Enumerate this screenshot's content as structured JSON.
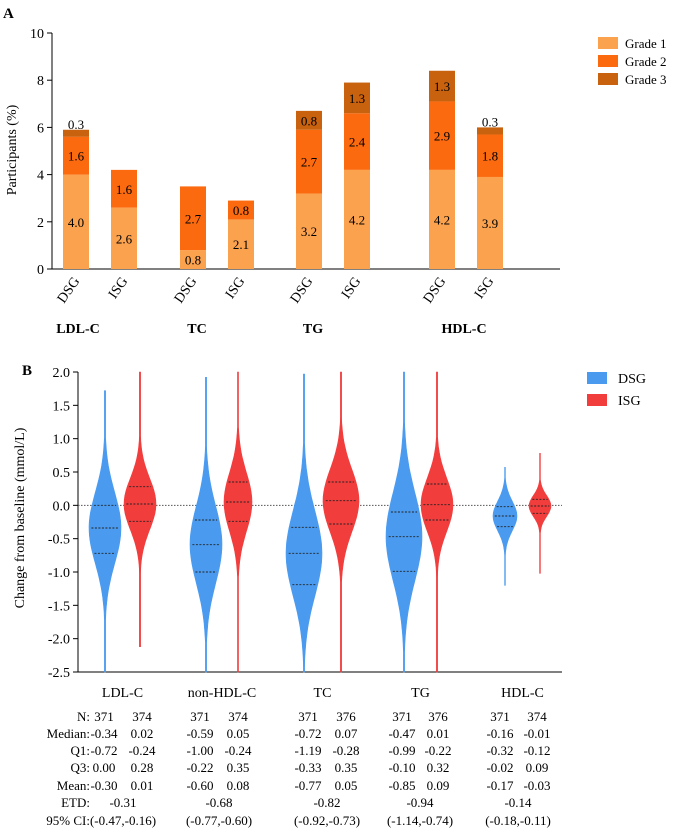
{
  "panel_a": {
    "label": "A",
    "chart_data": {
      "type": "bar",
      "stacked": true,
      "ylabel": "Participants (%)",
      "ylim": [
        0,
        10
      ],
      "yticks": [
        "0",
        "2",
        "4",
        "6",
        "8",
        "10"
      ],
      "categories": [
        "DSG",
        "ISG",
        "DSG",
        "ISG",
        "DSG",
        "ISG",
        "DSG",
        "ISG"
      ],
      "groups": [
        "LDL-C",
        "TC",
        "TG",
        "HDL-C"
      ],
      "legend_position": "top-right",
      "colors": {
        "Grade 1": "#fba24f",
        "Grade 2": "#fb6a0f",
        "Grade 3": "#c9620f"
      },
      "series": [
        {
          "name": "Grade 1",
          "values": [
            4.0,
            2.6,
            0.8,
            2.1,
            3.2,
            4.2,
            4.2,
            3.9
          ],
          "labels": [
            "4.0",
            "2.6",
            "0.8",
            "2.1",
            "3.2",
            "4.2",
            "4.2",
            "3.9"
          ]
        },
        {
          "name": "Grade 2",
          "values": [
            1.6,
            1.6,
            2.7,
            0.8,
            2.7,
            2.4,
            2.9,
            1.8
          ],
          "labels": [
            "1.6",
            "1.6",
            "2.7",
            "0.8",
            "2.7",
            "2.4",
            "2.9",
            "1.8"
          ]
        },
        {
          "name": "Grade 3",
          "values": [
            0.3,
            0.0,
            0.0,
            0.0,
            0.8,
            1.3,
            1.3,
            0.3
          ],
          "labels": [
            "0.3",
            "",
            "",
            "",
            "0.8",
            "1.3",
            "1.3",
            "0.3"
          ]
        }
      ]
    }
  },
  "panel_b": {
    "label": "B",
    "chart_data": {
      "type": "violin",
      "ylabel": "Change from baseline (mmol/L)",
      "ylim": [
        -2.5,
        2.0
      ],
      "yticks": [
        "2.0",
        "1.5",
        "1.0",
        "0.5",
        "0.0",
        "-0.5",
        "-1.0",
        "-1.5",
        "-2.0",
        "-2.5"
      ],
      "reference_line": 0.0,
      "groups": [
        "LDL-C",
        "non-HDL-C",
        "TC",
        "TG",
        "HDL-C"
      ],
      "legend_position": "top-right",
      "series": [
        {
          "name": "DSG",
          "color": "#4a9bf0",
          "median": [
            -0.34,
            -0.59,
            -0.72,
            -0.47,
            -0.16
          ],
          "q1": [
            -0.72,
            -1.0,
            -1.19,
            -0.99,
            -0.32
          ],
          "q3": [
            0.0,
            -0.22,
            -0.33,
            -0.1,
            -0.02
          ],
          "min": [
            -2.5,
            -2.5,
            -2.5,
            -2.5,
            -1.2
          ],
          "max": [
            1.72,
            1.92,
            1.97,
            2.0,
            0.57
          ]
        },
        {
          "name": "ISG",
          "color": "#f23d3d",
          "median": [
            0.02,
            0.05,
            0.07,
            0.01,
            -0.01
          ],
          "q1": [
            -0.24,
            -0.24,
            -0.28,
            -0.22,
            -0.12
          ],
          "q3": [
            0.28,
            0.35,
            0.35,
            0.32,
            0.09
          ],
          "min": [
            -2.12,
            -2.5,
            -2.5,
            -2.5,
            -1.02
          ],
          "max": [
            2.0,
            2.0,
            2.0,
            2.0,
            0.78
          ]
        }
      ]
    },
    "stats_table": {
      "rows": [
        {
          "label": "N:",
          "values": [
            "371",
            "374",
            "371",
            "374",
            "371",
            "376",
            "371",
            "376",
            "371",
            "374"
          ]
        },
        {
          "label": "Median:",
          "values": [
            "-0.34",
            "0.02",
            "-0.59",
            "0.05",
            "-0.72",
            "0.07",
            "-0.47",
            "0.01",
            "-0.16",
            "-0.01"
          ]
        },
        {
          "label": "Q1:",
          "values": [
            "-0.72",
            "-0.24",
            "-1.00",
            "-0.24",
            "-1.19",
            "-0.28",
            "-0.99",
            "-0.22",
            "-0.32",
            "-0.12"
          ]
        },
        {
          "label": "Q3:",
          "values": [
            "0.00",
            "0.28",
            "-0.22",
            "0.35",
            "-0.33",
            "0.35",
            "-0.10",
            "0.32",
            "-0.02",
            "0.09"
          ]
        },
        {
          "label": "Mean:",
          "values": [
            "-0.30",
            "0.01",
            "-0.60",
            "0.08",
            "-0.77",
            "0.05",
            "-0.85",
            "0.09",
            "-0.17",
            "-0.03"
          ]
        }
      ],
      "etd": {
        "label": "ETD:",
        "values": [
          "-0.31",
          "-0.68",
          "-0.82",
          "-0.94",
          "-0.14"
        ]
      },
      "ci": {
        "label": "95% CI:",
        "values": [
          "(-0.47,-0.16)",
          "(-0.77,-0.60)",
          "(-0.92,-0.73)",
          "(-1.14,-0.74)",
          "(-0.18,-0.11)"
        ]
      }
    }
  }
}
